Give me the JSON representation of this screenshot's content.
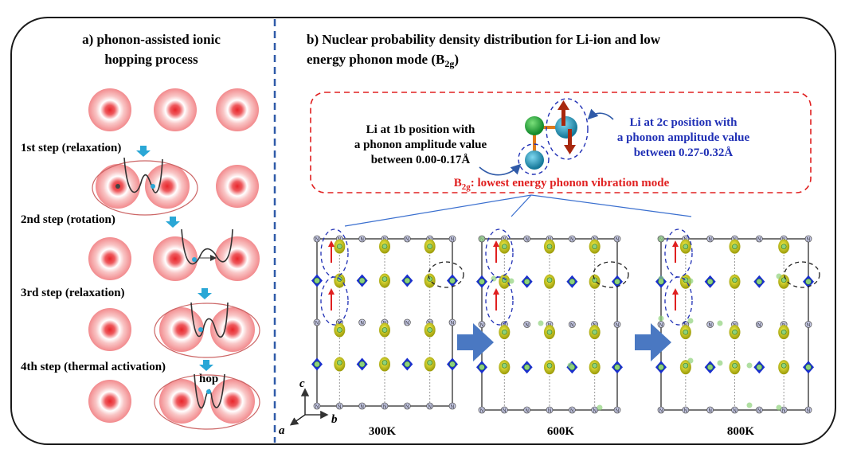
{
  "panel_a": {
    "title_line1": "a) phonon-assisted ionic",
    "title_line2": "hopping process",
    "steps": [
      {
        "label": "1st step (relaxation)"
      },
      {
        "label": "2nd step (rotation)"
      },
      {
        "label": "3rd step (relaxation)"
      },
      {
        "label": "4th step (thermal activation)"
      }
    ],
    "hop_label": "hop"
  },
  "panel_b": {
    "title_line1": "b) Nuclear probability density distribution for Li-ion and low",
    "title_line2_pre": "energy phonon mode (B",
    "title_line2_sub": "2g",
    "title_line2_post": ")",
    "li_1b": [
      "Li at 1b position with",
      "a phonon amplitude value",
      "between 0.00-0.17Å"
    ],
    "li_2c": [
      "Li at 2c position with",
      "a phonon amplitude value",
      "between 0.27-0.32Å"
    ],
    "mode_pre": "B",
    "mode_sub": "2g",
    "mode_post": ": lowest energy phonon vibration mode",
    "temperatures": [
      "300K",
      "600K",
      "800K"
    ],
    "axes": {
      "c": "c",
      "b": "b",
      "a": "a"
    },
    "atom_labels": {
      "n": "N",
      "li": "Li"
    }
  },
  "colors": {
    "border": "#1a1a1a",
    "divider": "#2f5aa8",
    "red_dash": "#e02020",
    "blue_text": "#1f2fb5",
    "site_pink": "#f7b8b8",
    "site_red": "#e8262b",
    "arrow_cyan": "#2aa7d6",
    "big_arrow": "#4a78c2",
    "yellow_density": "#d6d419",
    "blue_poly": "#1a2fcf",
    "li_green": "#8fd17a",
    "atom_green": "#22b14c",
    "atom_teal": "#1f8fb0"
  }
}
